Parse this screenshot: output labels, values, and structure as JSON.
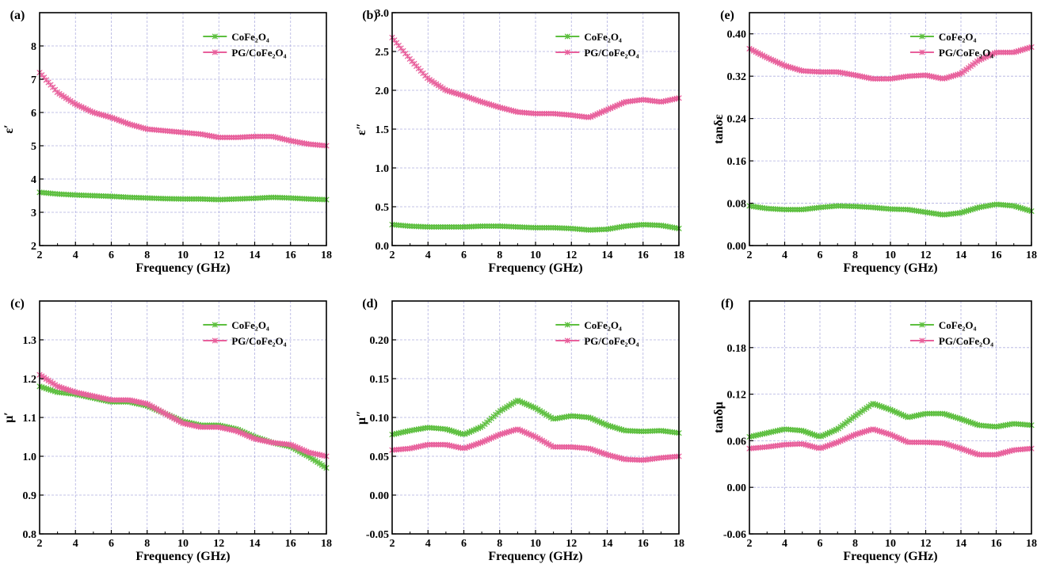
{
  "colors": {
    "cofe": "#5dbf3f",
    "pg": "#e8609c",
    "grid": "#b0b0e0"
  },
  "chart_data": [
    {
      "panel": "(a)",
      "type": "scatter",
      "xlabel": "Frequency (GHz)",
      "ylabel": "ε′",
      "xlim": [
        2,
        18
      ],
      "ylim": [
        2,
        9
      ],
      "xticks": [
        2,
        4,
        6,
        8,
        10,
        12,
        14,
        16,
        18
      ],
      "yticks": [
        2,
        3,
        4,
        5,
        6,
        7,
        8
      ],
      "ytick_labels": [
        "2",
        "3",
        "4",
        "5",
        "6",
        "7",
        "8"
      ],
      "legend": "top-right",
      "grid": true,
      "series": [
        {
          "name": "CoFe₂O₄",
          "x": [
            2,
            3,
            4,
            5,
            6,
            7,
            8,
            9,
            10,
            11,
            12,
            13,
            14,
            15,
            16,
            17,
            18
          ],
          "y": [
            3.6,
            3.55,
            3.52,
            3.5,
            3.48,
            3.45,
            3.43,
            3.41,
            3.4,
            3.4,
            3.38,
            3.4,
            3.42,
            3.45,
            3.43,
            3.4,
            3.38
          ]
        },
        {
          "name": "PG/CoFe₂O₄",
          "x": [
            2,
            3,
            4,
            5,
            6,
            7,
            8,
            9,
            10,
            11,
            12,
            13,
            14,
            15,
            16,
            17,
            18
          ],
          "y": [
            7.2,
            6.6,
            6.25,
            6.0,
            5.85,
            5.65,
            5.5,
            5.45,
            5.4,
            5.35,
            5.25,
            5.25,
            5.28,
            5.28,
            5.15,
            5.05,
            5.0
          ]
        }
      ]
    },
    {
      "panel": "(b)",
      "type": "scatter",
      "xlabel": "Frequency (GHz)",
      "ylabel": "ε″",
      "xlim": [
        2,
        18
      ],
      "ylim": [
        0,
        3.0
      ],
      "xticks": [
        2,
        4,
        6,
        8,
        10,
        12,
        14,
        16,
        18
      ],
      "yticks": [
        0,
        0.5,
        1.0,
        1.5,
        2.0,
        2.5,
        3.0
      ],
      "ytick_labels": [
        "0.0",
        "0.5",
        "1.0",
        "1.5",
        "2.0",
        "2.5",
        "3.0"
      ],
      "legend": "top-right",
      "grid": true,
      "series": [
        {
          "name": "CoFe₂O₄",
          "x": [
            2,
            3,
            4,
            5,
            6,
            7,
            8,
            9,
            10,
            11,
            12,
            13,
            14,
            15,
            16,
            17,
            18
          ],
          "y": [
            0.27,
            0.25,
            0.24,
            0.24,
            0.24,
            0.25,
            0.25,
            0.24,
            0.23,
            0.23,
            0.22,
            0.2,
            0.21,
            0.25,
            0.27,
            0.26,
            0.22
          ]
        },
        {
          "name": "PG/CoFe₂O₄",
          "x": [
            2,
            3,
            4,
            5,
            6,
            7,
            8,
            9,
            10,
            11,
            12,
            13,
            14,
            15,
            16,
            17,
            18
          ],
          "y": [
            2.68,
            2.4,
            2.15,
            2.0,
            1.93,
            1.85,
            1.78,
            1.72,
            1.7,
            1.7,
            1.68,
            1.65,
            1.75,
            1.85,
            1.88,
            1.85,
            1.9
          ]
        }
      ]
    },
    {
      "panel": "(e)",
      "type": "scatter",
      "xlabel": "Frequency (GHz)",
      "ylabel": "tanδε",
      "xlim": [
        2,
        18
      ],
      "ylim": [
        0,
        0.44
      ],
      "xticks": [
        2,
        4,
        6,
        8,
        10,
        12,
        14,
        16,
        18
      ],
      "yticks": [
        0,
        0.08,
        0.16,
        0.24,
        0.32,
        0.4
      ],
      "ytick_labels": [
        "0.00",
        "0.08",
        "0.16",
        "0.24",
        "0.32",
        "0.40"
      ],
      "legend": "top-right",
      "grid": true,
      "series": [
        {
          "name": "CoFe₂O₄",
          "x": [
            2,
            3,
            4,
            5,
            6,
            7,
            8,
            9,
            10,
            11,
            12,
            13,
            14,
            15,
            16,
            17,
            18
          ],
          "y": [
            0.075,
            0.07,
            0.068,
            0.068,
            0.072,
            0.075,
            0.074,
            0.072,
            0.069,
            0.068,
            0.063,
            0.058,
            0.062,
            0.072,
            0.078,
            0.075,
            0.065
          ]
        },
        {
          "name": "PG/CoFe₂O₄",
          "x": [
            2,
            3,
            4,
            5,
            6,
            7,
            8,
            9,
            10,
            11,
            12,
            13,
            14,
            15,
            16,
            17,
            18
          ],
          "y": [
            0.372,
            0.355,
            0.34,
            0.33,
            0.328,
            0.328,
            0.322,
            0.315,
            0.315,
            0.32,
            0.322,
            0.315,
            0.325,
            0.35,
            0.365,
            0.365,
            0.375
          ]
        }
      ]
    },
    {
      "panel": "(c)",
      "type": "scatter",
      "xlabel": "Frequency (GHz)",
      "ylabel": "μ′",
      "xlim": [
        2,
        18
      ],
      "ylim": [
        0.8,
        1.4
      ],
      "xticks": [
        2,
        4,
        6,
        8,
        10,
        12,
        14,
        16,
        18
      ],
      "yticks": [
        0.8,
        0.9,
        1.0,
        1.1,
        1.2,
        1.3
      ],
      "ytick_labels": [
        "0.8",
        "0.9",
        "1.0",
        "1.1",
        "1.2",
        "1.3"
      ],
      "legend": "top-right",
      "grid": true,
      "series": [
        {
          "name": "CoFe₂O₄",
          "x": [
            2,
            3,
            4,
            5,
            6,
            7,
            8,
            9,
            10,
            11,
            12,
            13,
            14,
            15,
            16,
            17,
            18
          ],
          "y": [
            1.18,
            1.165,
            1.16,
            1.15,
            1.14,
            1.14,
            1.13,
            1.11,
            1.09,
            1.08,
            1.08,
            1.07,
            1.05,
            1.035,
            1.025,
            1.0,
            0.97
          ]
        },
        {
          "name": "PG/CoFe₂O₄",
          "x": [
            2,
            3,
            4,
            5,
            6,
            7,
            8,
            9,
            10,
            11,
            12,
            13,
            14,
            15,
            16,
            17,
            18
          ],
          "y": [
            1.21,
            1.18,
            1.165,
            1.155,
            1.145,
            1.145,
            1.135,
            1.11,
            1.085,
            1.075,
            1.075,
            1.065,
            1.045,
            1.035,
            1.03,
            1.01,
            1.0
          ]
        }
      ]
    },
    {
      "panel": "(d)",
      "type": "scatter",
      "xlabel": "Frequency (GHz)",
      "ylabel": "μ″",
      "xlim": [
        2,
        18
      ],
      "ylim": [
        -0.05,
        0.25
      ],
      "xticks": [
        2,
        4,
        6,
        8,
        10,
        12,
        14,
        16,
        18
      ],
      "yticks": [
        -0.05,
        0,
        0.05,
        0.1,
        0.15,
        0.2
      ],
      "ytick_labels": [
        "-0.05",
        "0.00",
        "0.05",
        "0.10",
        "0.15",
        "0.20"
      ],
      "legend": "top-right",
      "grid": true,
      "series": [
        {
          "name": "CoFe₂O₄",
          "x": [
            2,
            3,
            4,
            5,
            6,
            7,
            8,
            9,
            10,
            11,
            12,
            13,
            14,
            15,
            16,
            17,
            18
          ],
          "y": [
            0.078,
            0.083,
            0.087,
            0.085,
            0.078,
            0.088,
            0.108,
            0.122,
            0.112,
            0.098,
            0.102,
            0.1,
            0.09,
            0.083,
            0.082,
            0.083,
            0.08
          ]
        },
        {
          "name": "PG/CoFe₂O₄",
          "x": [
            2,
            3,
            4,
            5,
            6,
            7,
            8,
            9,
            10,
            11,
            12,
            13,
            14,
            15,
            16,
            17,
            18
          ],
          "y": [
            0.058,
            0.06,
            0.065,
            0.065,
            0.06,
            0.068,
            0.078,
            0.085,
            0.075,
            0.062,
            0.062,
            0.06,
            0.052,
            0.046,
            0.045,
            0.048,
            0.05
          ]
        }
      ]
    },
    {
      "panel": "(f)",
      "type": "scatter",
      "xlabel": "Frequency (GHz)",
      "ylabel": "tanδμ",
      "xlim": [
        2,
        18
      ],
      "ylim": [
        -0.06,
        0.24
      ],
      "xticks": [
        2,
        4,
        6,
        8,
        10,
        12,
        14,
        16,
        18
      ],
      "yticks": [
        -0.06,
        0,
        0.06,
        0.12,
        0.18
      ],
      "ytick_labels": [
        "-0.06",
        "0.00",
        "0.06",
        "0.12",
        "0.18"
      ],
      "legend": "top-right",
      "grid": true,
      "series": [
        {
          "name": "CoFe₂O₄",
          "x": [
            2,
            3,
            4,
            5,
            6,
            7,
            8,
            9,
            10,
            11,
            12,
            13,
            14,
            15,
            16,
            17,
            18
          ],
          "y": [
            0.065,
            0.07,
            0.075,
            0.073,
            0.065,
            0.075,
            0.092,
            0.108,
            0.1,
            0.09,
            0.095,
            0.095,
            0.088,
            0.08,
            0.078,
            0.082,
            0.08
          ]
        },
        {
          "name": "PG/CoFe₂O₄",
          "x": [
            2,
            3,
            4,
            5,
            6,
            7,
            8,
            9,
            10,
            11,
            12,
            13,
            14,
            15,
            16,
            17,
            18
          ],
          "y": [
            0.05,
            0.052,
            0.055,
            0.056,
            0.05,
            0.058,
            0.068,
            0.075,
            0.068,
            0.058,
            0.058,
            0.057,
            0.05,
            0.042,
            0.042,
            0.048,
            0.05
          ]
        }
      ]
    }
  ]
}
